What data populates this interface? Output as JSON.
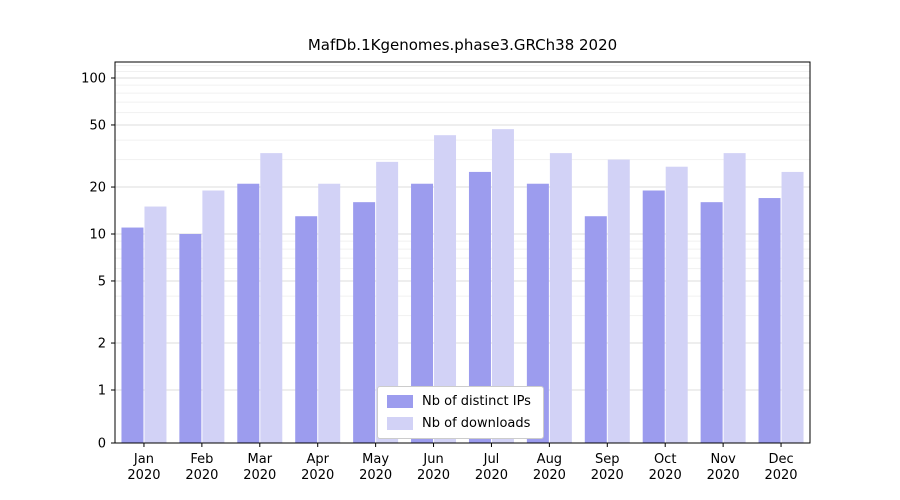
{
  "title": "MafDb.1Kgenomes.phase3.GRCh38 2020",
  "chart_data": {
    "type": "bar",
    "title": "MafDb.1Kgenomes.phase3.GRCh38 2020",
    "scale": "symlog",
    "grid": true,
    "legend_position": "lower center",
    "categories": [
      "Jan",
      "Feb",
      "Mar",
      "Apr",
      "May",
      "Jun",
      "Jul",
      "Aug",
      "Sep",
      "Oct",
      "Nov",
      "Dec"
    ],
    "year": "2020",
    "series": [
      {
        "name": "Nb of distinct IPs",
        "color": "#9c9cee",
        "values": [
          11,
          10,
          21,
          13,
          16,
          21,
          25,
          21,
          13,
          19,
          16,
          17
        ]
      },
      {
        "name": "Nb of downloads",
        "color": "#d2d2f6",
        "values": [
          15,
          19,
          33,
          21,
          29,
          43,
          47,
          33,
          30,
          27,
          33,
          25
        ]
      }
    ],
    "yticks": [
      0,
      1,
      2,
      5,
      10,
      20,
      50,
      100
    ],
    "ytick_labels": [
      "0",
      "1",
      "2",
      "5",
      "10",
      "20",
      "50",
      "100"
    ],
    "ylim": [
      0,
      127
    ],
    "xlabel": "",
    "ylabel": ""
  },
  "colors": {
    "axis": "#000000",
    "major_grid": "#dedede",
    "minor_grid": "#f1f1f1",
    "background": "#ffffff"
  }
}
